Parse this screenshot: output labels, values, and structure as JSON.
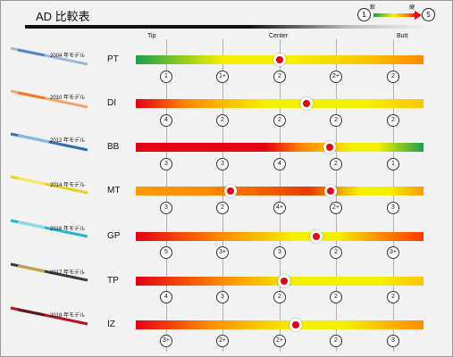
{
  "title": "AD 比較表",
  "legend": {
    "soft_value": "1",
    "soft_label": "軟",
    "hard_label": "硬",
    "hard_value": "5"
  },
  "columns": {
    "tip": "Tip",
    "center": "Center",
    "butt": "Butt"
  },
  "shafts": [
    {
      "code": "PT",
      "year_label": "2004 年モデル",
      "flex": [
        "1",
        "1+",
        "2",
        "2+",
        "2"
      ]
    },
    {
      "code": "DI",
      "year_label": "2010 年モデル",
      "flex": [
        "4",
        "2",
        "2",
        "2",
        "2"
      ]
    },
    {
      "code": "BB",
      "year_label": "2012 年モデル",
      "flex": [
        "3",
        "3",
        "4",
        "2",
        "1"
      ]
    },
    {
      "code": "MT",
      "year_label": "2014 年モデル",
      "flex": [
        "3",
        "2",
        "4+",
        "2+",
        "3"
      ]
    },
    {
      "code": "GP",
      "year_label": "2016 年モデル",
      "flex": [
        "5",
        "3+",
        "3",
        "2",
        "3+"
      ]
    },
    {
      "code": "TP",
      "year_label": "2017 年モデル",
      "flex": [
        "4",
        "3",
        "2",
        "2",
        "2"
      ]
    },
    {
      "code": "IZ",
      "year_label": "2018 年モデル",
      "flex": [
        "3+",
        "2+",
        "2+",
        "2",
        "3"
      ]
    }
  ],
  "colors": {
    "green": "#1aa04a",
    "yellow": "#f5f000",
    "orange": "#ff8a00",
    "red": "#e60012"
  }
}
